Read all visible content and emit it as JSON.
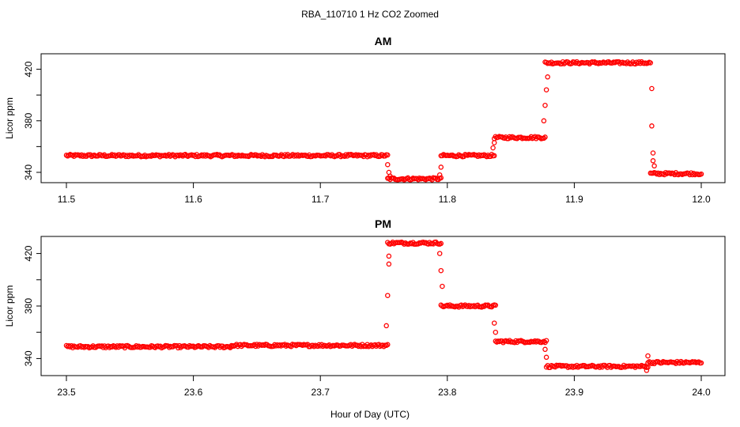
{
  "figure": {
    "title": "RBA_110710  1 Hz CO2 Zoomed",
    "xlabel": "Hour of Day (UTC)"
  },
  "chart_data": [
    {
      "type": "scatter",
      "title": "AM",
      "xlabel": "",
      "ylabel": "Licor ppm",
      "xlim": [
        11.5,
        12.0
      ],
      "ylim": [
        332,
        432
      ],
      "x_ticks": [
        "11.5",
        "11.6",
        "11.7",
        "11.8",
        "11.9",
        "12.0"
      ],
      "y_ticks": [
        "340",
        "380",
        "420"
      ],
      "marker_color": "#ff0000",
      "segments": [
        {
          "x_start": 11.5,
          "x_end": 11.753,
          "y": 353
        },
        {
          "x_start": 11.753,
          "x_end": 11.795,
          "y": 335
        },
        {
          "x_start": 11.795,
          "x_end": 11.837,
          "y": 353
        },
        {
          "x_start": 11.837,
          "x_end": 11.877,
          "y": 367
        },
        {
          "x_start": 11.877,
          "x_end": 11.96,
          "y": 425
        },
        {
          "x_start": 11.96,
          "x_end": 12.0,
          "y": 339
        }
      ],
      "transition_points": [
        {
          "x": 11.753,
          "y": 346
        },
        {
          "x": 11.754,
          "y": 340
        },
        {
          "x": 11.755,
          "y": 337
        },
        {
          "x": 11.794,
          "y": 338
        },
        {
          "x": 11.795,
          "y": 344
        },
        {
          "x": 11.836,
          "y": 359
        },
        {
          "x": 11.837,
          "y": 363
        },
        {
          "x": 11.876,
          "y": 380
        },
        {
          "x": 11.877,
          "y": 392
        },
        {
          "x": 11.878,
          "y": 404
        },
        {
          "x": 11.879,
          "y": 414
        },
        {
          "x": 11.961,
          "y": 405
        },
        {
          "x": 11.961,
          "y": 376
        },
        {
          "x": 11.962,
          "y": 355
        },
        {
          "x": 11.962,
          "y": 349
        },
        {
          "x": 11.963,
          "y": 345
        }
      ]
    },
    {
      "type": "scatter",
      "title": "PM",
      "xlabel": "",
      "ylabel": "Licor ppm",
      "xlim": [
        23.5,
        24.0
      ],
      "ylim": [
        327,
        433
      ],
      "x_ticks": [
        "23.5",
        "23.6",
        "23.7",
        "23.8",
        "23.9",
        "24.0"
      ],
      "y_ticks": [
        "340",
        "380",
        "420"
      ],
      "marker_color": "#ff0000",
      "segments": [
        {
          "x_start": 23.5,
          "x_end": 23.63,
          "y": 349
        },
        {
          "x_start": 23.63,
          "x_end": 23.753,
          "y": 350
        },
        {
          "x_start": 23.753,
          "x_end": 23.795,
          "y": 428
        },
        {
          "x_start": 23.795,
          "x_end": 23.838,
          "y": 380
        },
        {
          "x_start": 23.838,
          "x_end": 23.878,
          "y": 353
        },
        {
          "x_start": 23.878,
          "x_end": 23.958,
          "y": 334
        },
        {
          "x_start": 23.958,
          "x_end": 24.0,
          "y": 337
        }
      ],
      "transition_points": [
        {
          "x": 23.752,
          "y": 365
        },
        {
          "x": 23.753,
          "y": 388
        },
        {
          "x": 23.754,
          "y": 412
        },
        {
          "x": 23.754,
          "y": 418
        },
        {
          "x": 23.794,
          "y": 420
        },
        {
          "x": 23.795,
          "y": 407
        },
        {
          "x": 23.796,
          "y": 395
        },
        {
          "x": 23.837,
          "y": 367
        },
        {
          "x": 23.838,
          "y": 360
        },
        {
          "x": 23.877,
          "y": 347
        },
        {
          "x": 23.878,
          "y": 341
        },
        {
          "x": 23.957,
          "y": 331
        },
        {
          "x": 23.958,
          "y": 342
        }
      ]
    }
  ]
}
